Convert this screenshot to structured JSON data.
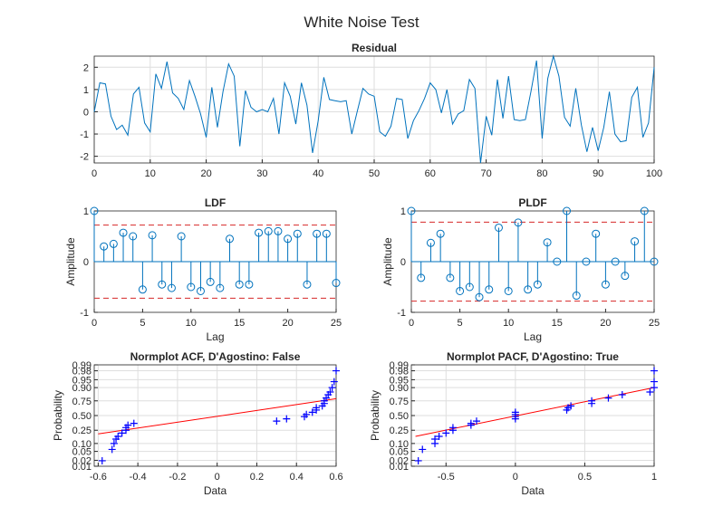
{
  "figure": {
    "title": "White Noise Test"
  },
  "colors": {
    "series": "#0072bd",
    "limit": "#d62728",
    "fit": "#ff0000",
    "marker": "#0000ff",
    "grid": "#dedede",
    "axes": "#262626"
  },
  "chart_data": [
    {
      "type": "line",
      "title": "Residual",
      "xlabel": "",
      "ylabel": "",
      "xlim": [
        0,
        100
      ],
      "ylim": [
        -2.3,
        2.5
      ],
      "xticks": [
        0,
        10,
        20,
        30,
        40,
        50,
        60,
        70,
        80,
        90,
        100
      ],
      "yticks": [
        -2,
        -1,
        0,
        1,
        2
      ],
      "grid": true,
      "x_start": 0,
      "values": [
        0,
        1.3,
        1.25,
        -0.2,
        -0.8,
        -0.6,
        -1.05,
        0.8,
        1.1,
        -0.5,
        -0.9,
        1.7,
        1.05,
        2.25,
        0.85,
        0.6,
        0.1,
        1.4,
        0.7,
        -0.1,
        -1.15,
        1.1,
        -0.7,
        0.9,
        2.15,
        1.6,
        -1.55,
        0.95,
        0.2,
        0,
        0.1,
        0,
        0.6,
        -1.0,
        1.3,
        0.7,
        -0.55,
        1.3,
        0.3,
        -1.85,
        -0.4,
        1.55,
        0.55,
        0.5,
        0.45,
        0.5,
        -1.0,
        0.05,
        1.05,
        0.8,
        0.7,
        -0.9,
        -1.1,
        -0.65,
        0.6,
        0.55,
        -1.2,
        -0.4,
        0.05,
        0.6,
        1.3,
        1.0,
        -0.05,
        1.0,
        -0.55,
        -0.1,
        0.05,
        1.45,
        1.05,
        -2.3,
        -0.2,
        -1.05,
        1.45,
        -0.3,
        1.6,
        -0.35,
        -0.4,
        -0.35,
        0.9,
        2.3,
        -1.2,
        1.5,
        2.5,
        1.6,
        -0.25,
        -0.65,
        1.05,
        -0.6,
        -1.8,
        -0.7,
        -1.75,
        -0.7,
        0.9,
        -1.0,
        -1.35,
        -1.3,
        0.65,
        1.1,
        -1.15,
        -0.5,
        2.0
      ]
    },
    {
      "type": "stem",
      "title": "LDF",
      "xlabel": "Lag",
      "ylabel": "Amplitude",
      "xlim": [
        0,
        25
      ],
      "ylim": [
        -1,
        1
      ],
      "xticks": [
        0,
        5,
        10,
        15,
        20,
        25
      ],
      "yticks": [
        -1,
        0,
        1
      ],
      "grid": false,
      "confidence_bounds": [
        0.72,
        -0.72
      ],
      "lags": [
        0,
        1,
        2,
        3,
        4,
        5,
        6,
        7,
        8,
        9,
        10,
        11,
        12,
        13,
        14,
        15,
        16,
        17,
        18,
        19,
        20,
        21,
        22,
        23,
        24,
        25
      ],
      "values": [
        1.0,
        0.3,
        0.35,
        0.57,
        0.5,
        -0.55,
        0.52,
        -0.45,
        -0.52,
        0.5,
        -0.5,
        -0.58,
        -0.4,
        -0.52,
        0.45,
        -0.45,
        -0.45,
        0.57,
        0.6,
        0.6,
        0.45,
        0.55,
        -0.45,
        0.55,
        0.55,
        -0.42
      ]
    },
    {
      "type": "stem",
      "title": "PLDF",
      "xlabel": "Lag",
      "ylabel": "Amplitude",
      "xlim": [
        0,
        25
      ],
      "ylim": [
        -1,
        1
      ],
      "xticks": [
        0,
        5,
        10,
        15,
        20,
        25
      ],
      "yticks": [
        -1,
        0,
        1
      ],
      "grid": false,
      "confidence_bounds": [
        0.78,
        -0.78
      ],
      "lags": [
        0,
        1,
        2,
        3,
        4,
        5,
        6,
        7,
        8,
        9,
        10,
        11,
        12,
        13,
        14,
        15,
        16,
        17,
        18,
        19,
        20,
        21,
        22,
        23,
        24,
        25
      ],
      "values": [
        1.0,
        -0.32,
        0.37,
        0.55,
        -0.32,
        -0.58,
        -0.5,
        -0.7,
        -0.55,
        0.67,
        -0.58,
        0.77,
        -0.55,
        -0.45,
        0.38,
        0.0,
        1.0,
        -0.67,
        0.0,
        0.55,
        -0.45,
        0.0,
        -0.28,
        0.4,
        1.0,
        0.0
      ]
    },
    {
      "type": "scatter",
      "title": "Normplot ACF, D'Agostino: False",
      "xlabel": "Data",
      "ylabel": "Probability",
      "xlim": [
        -0.62,
        0.6
      ],
      "xticks": [
        -0.6,
        -0.4,
        -0.2,
        0,
        0.2,
        0.4,
        0.6
      ],
      "prob_ticks": [
        0.01,
        0.02,
        0.05,
        0.1,
        0.25,
        0.5,
        0.75,
        0.9,
        0.95,
        0.98,
        0.99
      ],
      "prob_tick_labels": [
        "0.01",
        "0.02",
        "0.05",
        "0.10",
        "0.25",
        "0.50",
        "0.75",
        "0.90",
        "0.95",
        "0.98",
        "0.99"
      ],
      "grid": true,
      "points": [
        [
          -0.58,
          0.019
        ],
        [
          -0.53,
          0.06
        ],
        [
          -0.52,
          0.1
        ],
        [
          -0.51,
          0.14
        ],
        [
          -0.5,
          0.17
        ],
        [
          -0.48,
          0.21
        ],
        [
          -0.46,
          0.25
        ],
        [
          -0.46,
          0.29
        ],
        [
          -0.45,
          0.33
        ],
        [
          -0.42,
          0.36
        ],
        [
          0.3,
          0.4
        ],
        [
          0.35,
          0.44
        ],
        [
          0.44,
          0.48
        ],
        [
          0.45,
          0.52
        ],
        [
          0.48,
          0.56
        ],
        [
          0.5,
          0.6
        ],
        [
          0.5,
          0.64
        ],
        [
          0.53,
          0.67
        ],
        [
          0.54,
          0.71
        ],
        [
          0.54,
          0.75
        ],
        [
          0.55,
          0.79
        ],
        [
          0.56,
          0.83
        ],
        [
          0.57,
          0.86
        ],
        [
          0.58,
          0.9
        ],
        [
          0.59,
          0.94
        ],
        [
          0.6,
          0.98
        ]
      ],
      "fit_line": {
        "x": [
          -0.6,
          0.6
        ],
        "p": [
          0.2,
          0.78
        ]
      }
    },
    {
      "type": "scatter",
      "title": "Normplot PACF, D'Agostino: True",
      "xlabel": "Data",
      "ylabel": "Probability",
      "xlim": [
        -0.75,
        1.0
      ],
      "xticks": [
        -0.5,
        0,
        0.5,
        1
      ],
      "prob_ticks": [
        0.01,
        0.02,
        0.05,
        0.1,
        0.25,
        0.5,
        0.75,
        0.9,
        0.95,
        0.98,
        0.99
      ],
      "prob_tick_labels": [
        "0.01",
        "0.02",
        "0.05",
        "0.10",
        "0.25",
        "0.50",
        "0.75",
        "0.90",
        "0.95",
        "0.98",
        "0.99"
      ],
      "grid": true,
      "points": [
        [
          -0.7,
          0.019
        ],
        [
          -0.67,
          0.06
        ],
        [
          -0.58,
          0.1
        ],
        [
          -0.58,
          0.14
        ],
        [
          -0.55,
          0.17
        ],
        [
          -0.5,
          0.21
        ],
        [
          -0.45,
          0.25
        ],
        [
          -0.45,
          0.29
        ],
        [
          -0.32,
          0.33
        ],
        [
          -0.32,
          0.36
        ],
        [
          -0.28,
          0.4
        ],
        [
          0.0,
          0.44
        ],
        [
          0.0,
          0.48
        ],
        [
          0.0,
          0.52
        ],
        [
          0.0,
          0.56
        ],
        [
          0.37,
          0.6
        ],
        [
          0.38,
          0.64
        ],
        [
          0.4,
          0.67
        ],
        [
          0.55,
          0.71
        ],
        [
          0.55,
          0.75
        ],
        [
          0.67,
          0.79
        ],
        [
          0.77,
          0.83
        ],
        [
          0.97,
          0.86
        ],
        [
          1.0,
          0.9
        ],
        [
          1.0,
          0.94
        ],
        [
          1.0,
          0.98
        ]
      ],
      "fit_line": {
        "x": [
          -0.72,
          1.0
        ],
        "p": [
          0.17,
          0.9
        ]
      }
    }
  ]
}
